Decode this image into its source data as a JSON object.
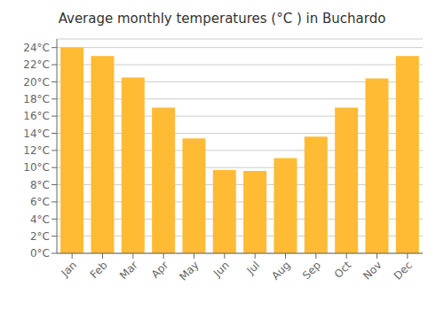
{
  "chart_data": {
    "type": "bar",
    "title": "Average monthly temperatures (°C ) in Buchardo",
    "categories": [
      "Jan",
      "Feb",
      "Mar",
      "Apr",
      "May",
      "Jun",
      "Jul",
      "Aug",
      "Sep",
      "Oct",
      "Nov",
      "Dec"
    ],
    "values": [
      24.0,
      23.0,
      20.5,
      17.0,
      13.4,
      9.7,
      9.6,
      11.1,
      13.6,
      17.0,
      20.4,
      23.0
    ],
    "color": "#FFBB33",
    "ylim": [
      0,
      25
    ],
    "yticks": [
      {
        "value": 0,
        "label": "0°C"
      },
      {
        "value": 2,
        "label": "2°C"
      },
      {
        "value": 4,
        "label": "4°C"
      },
      {
        "value": 6,
        "label": "6°C"
      },
      {
        "value": 8,
        "label": "8°C"
      },
      {
        "value": 10,
        "label": "10°C"
      },
      {
        "value": 12,
        "label": "12°C"
      },
      {
        "value": 14,
        "label": "14°C"
      },
      {
        "value": 16,
        "label": "16°C"
      },
      {
        "value": 18,
        "label": "18°C"
      },
      {
        "value": 20,
        "label": "20°C"
      },
      {
        "value": 22,
        "label": "22°C"
      },
      {
        "value": 24,
        "label": "24°C"
      }
    ],
    "grid": true
  }
}
